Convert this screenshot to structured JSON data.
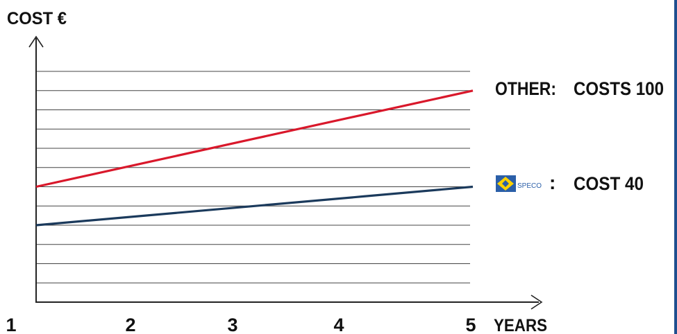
{
  "chart_data": {
    "type": "line",
    "ylabel": "COST €",
    "xlabel": "YEARS",
    "x": [
      1,
      2,
      3,
      4,
      5
    ],
    "x_tick_labels": [
      "1",
      "2",
      "3",
      "4",
      "5"
    ],
    "ylim": [
      0,
      120
    ],
    "grid": true,
    "series": [
      {
        "name": "OTHER",
        "annotation": "COSTS 100",
        "color": "#d9182b",
        "values": [
          60,
          72.5,
          85,
          97.5,
          110
        ]
      },
      {
        "name": "SPECO",
        "annotation": "COST 40",
        "color": "#1b3a5c",
        "values": [
          40,
          45,
          50,
          55,
          60
        ]
      }
    ]
  },
  "labels": {
    "other_name": "OTHER:",
    "other_value": "COSTS 100",
    "speco_colon": ":",
    "speco_value": "COST 40",
    "speco_logo_text": "SPECO"
  },
  "colors": {
    "logo_bg": "#2b5fa8",
    "logo_mark": "#ffd200",
    "axis": "#222222",
    "grid": "#444444",
    "border": "#1f4f8f"
  }
}
